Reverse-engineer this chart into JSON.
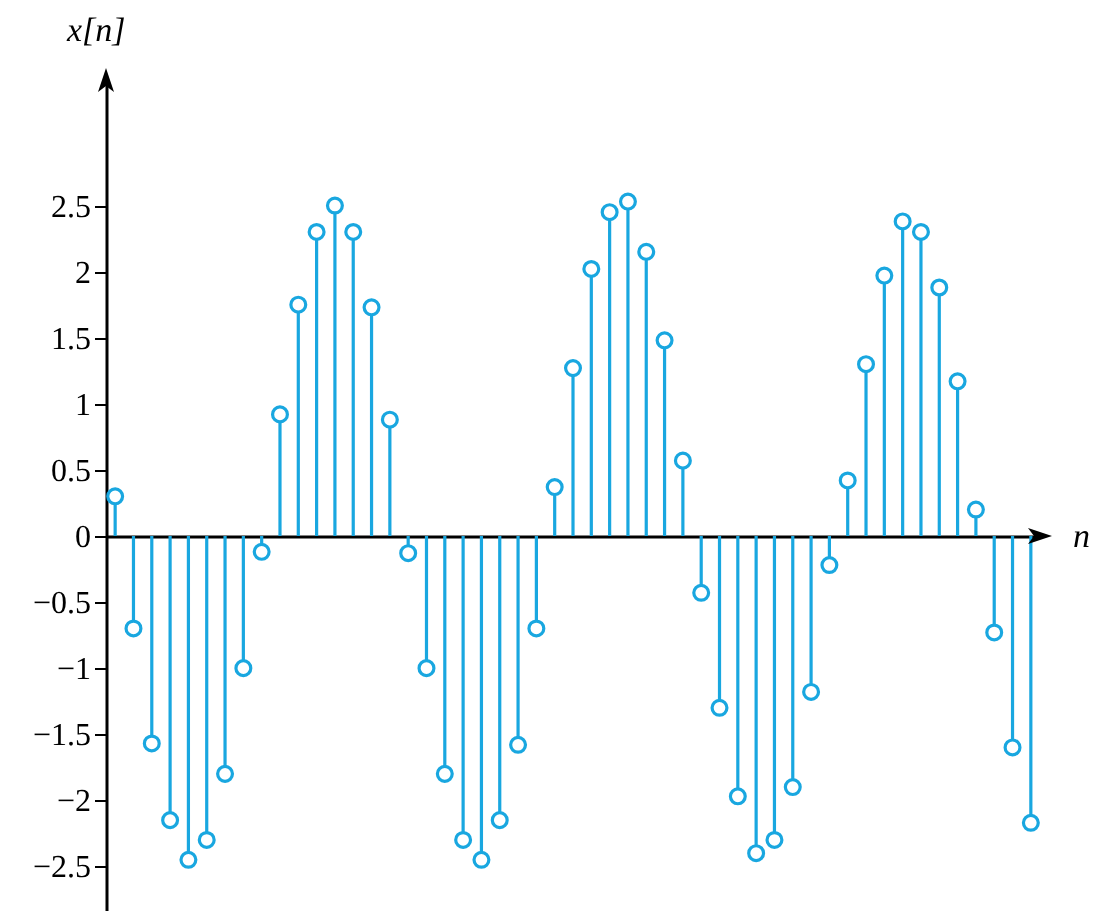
{
  "chart_data": {
    "type": "lollipop",
    "xlabel": "n",
    "ylabel": "x[n]",
    "categories": [
      null,
      null,
      null,
      null,
      null,
      null,
      null,
      null,
      null,
      null,
      null,
      null,
      null,
      null,
      null,
      null,
      null,
      null,
      null,
      null,
      null,
      null,
      null,
      null,
      null,
      null,
      null,
      null,
      null,
      null,
      null,
      null,
      null,
      null,
      null,
      null,
      null,
      null,
      null,
      null,
      null,
      null,
      null,
      null,
      null,
      null,
      null,
      null,
      null,
      null,
      null
    ],
    "series": [
      {
        "color": "#19a7e0",
        "values": [
          0.3,
          -0.7,
          -1.57,
          -2.15,
          -2.45,
          -2.3,
          -1.8,
          -1.0,
          -0.12,
          0.92,
          1.75,
          2.3,
          2.5,
          2.3,
          1.73,
          0.88,
          -0.13,
          -1.0,
          -1.8,
          -2.3,
          -2.45,
          -2.15,
          -1.58,
          -0.7,
          0.37,
          1.27,
          2.02,
          2.45,
          2.53,
          2.15,
          1.48,
          0.57,
          -0.43,
          -1.3,
          -1.97,
          -2.4,
          -2.3,
          -1.9,
          -1.18,
          -0.22,
          0.42,
          1.3,
          1.97,
          2.38,
          2.3,
          1.88,
          1.17,
          0.2,
          -0.73,
          -1.6,
          -2.17
        ]
      }
    ],
    "ylim": [
      -2.83,
      3.45
    ],
    "yticks": [
      {
        "value": -2.5,
        "label": "−2.5"
      },
      {
        "value": -2,
        "label": "−2"
      },
      {
        "value": -1.5,
        "label": "−1.5"
      },
      {
        "value": -1,
        "label": "−1"
      },
      {
        "value": -0.5,
        "label": "−0.5"
      },
      0,
      0.5,
      1,
      1.5,
      2,
      2.5
    ],
    "marker": "circle",
    "legend": false
  }
}
